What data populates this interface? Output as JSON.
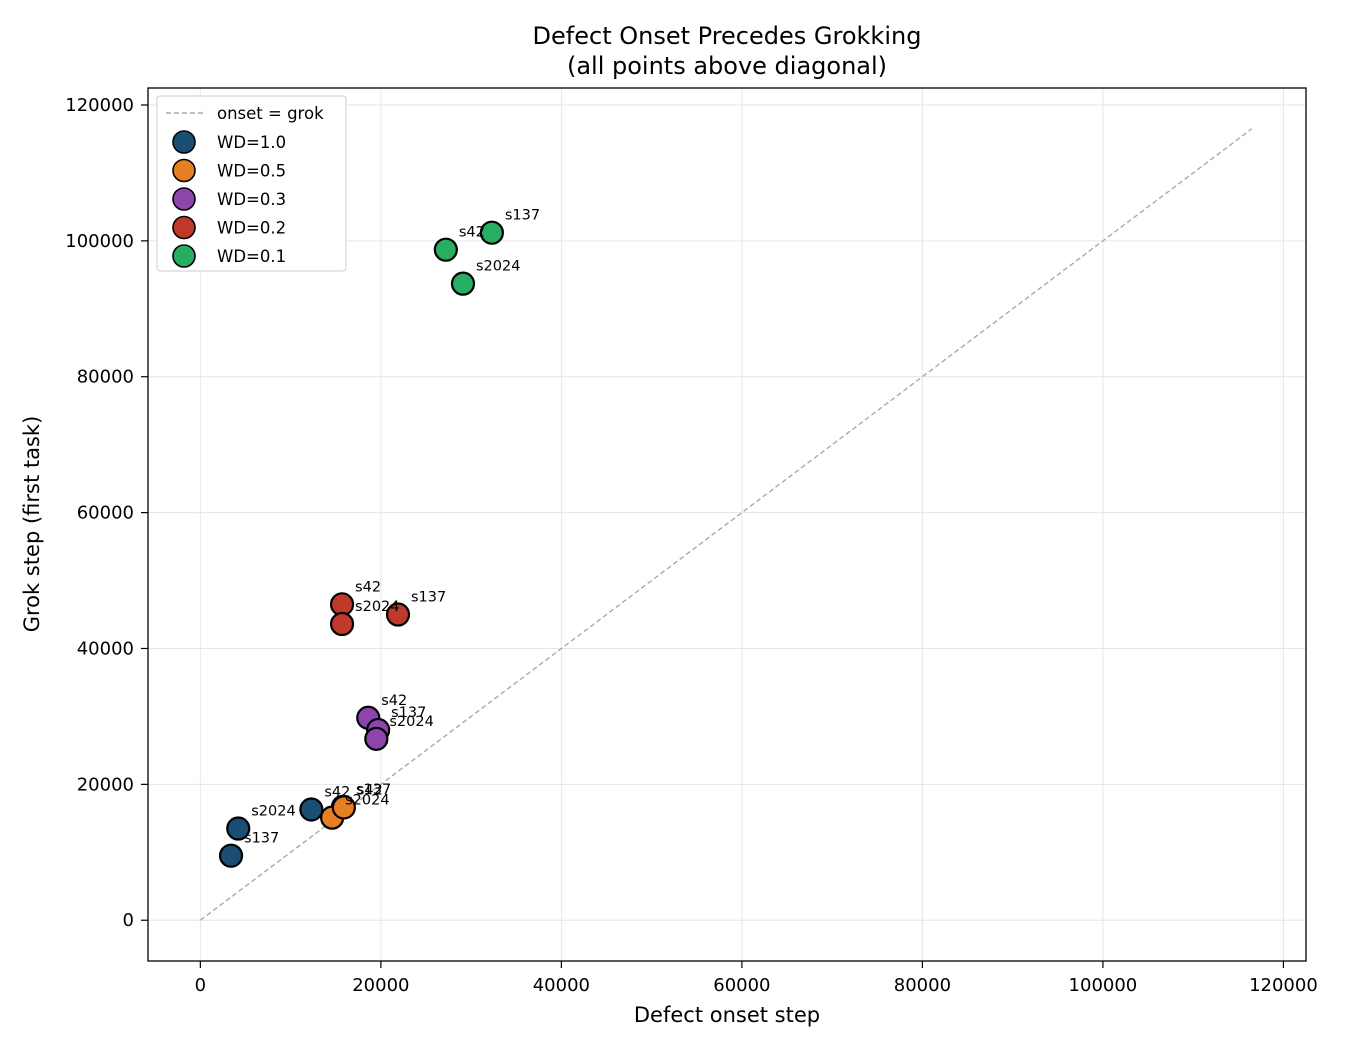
{
  "chart_data": {
    "type": "scatter",
    "title_lines": [
      "Defect Onset Precedes Grokking",
      "(all points above diagonal)"
    ],
    "xlabel": "Defect onset step",
    "ylabel": "Grok step (first task)",
    "xlim": [
      -5800,
      122500
    ],
    "ylim": [
      -6000,
      122500
    ],
    "xticks": [
      0,
      20000,
      40000,
      60000,
      80000,
      100000,
      120000
    ],
    "yticks": [
      0,
      20000,
      40000,
      60000,
      80000,
      100000,
      120000
    ],
    "xtick_labels": [
      "0",
      "20000",
      "40000",
      "60000",
      "80000",
      "100000",
      "120000"
    ],
    "ytick_labels": [
      "0",
      "20000",
      "40000",
      "60000",
      "80000",
      "100000",
      "120000"
    ],
    "grid": true,
    "legend_position": "top-left",
    "reference_line": {
      "label": "onset = grok",
      "from": [
        0,
        0
      ],
      "to": [
        116500,
        116500
      ],
      "color": "#aaaaaa"
    },
    "series": [
      {
        "name": "WD=1.0",
        "color": "#1a4e72",
        "points": [
          {
            "x": 12300,
            "y": 16300,
            "label": "s42"
          },
          {
            "x": 3400,
            "y": 9500,
            "label": "s137"
          },
          {
            "x": 4200,
            "y": 13500,
            "label": "s2024"
          }
        ]
      },
      {
        "name": "WD=0.5",
        "color": "#e67e22",
        "points": [
          {
            "x": 15800,
            "y": 16700,
            "label": "s137"
          },
          {
            "x": 14600,
            "y": 15100,
            "label": "s2024"
          },
          {
            "x": 15900,
            "y": 16600,
            "label": "s42"
          }
        ]
      },
      {
        "name": "WD=0.3",
        "color": "#8e44ad",
        "points": [
          {
            "x": 18600,
            "y": 29800,
            "label": "s42"
          },
          {
            "x": 19700,
            "y": 28000,
            "label": "s137"
          },
          {
            "x": 19500,
            "y": 26700,
            "label": "s2024"
          }
        ]
      },
      {
        "name": "WD=0.2",
        "color": "#c0392b",
        "points": [
          {
            "x": 15700,
            "y": 46500,
            "label": "s42"
          },
          {
            "x": 21900,
            "y": 45000,
            "label": "s137"
          },
          {
            "x": 15700,
            "y": 43600,
            "label": "s2024"
          }
        ]
      },
      {
        "name": "WD=0.1",
        "color": "#27ae60",
        "points": [
          {
            "x": 27200,
            "y": 98700,
            "label": "s42"
          },
          {
            "x": 32300,
            "y": 101200,
            "label": "s137"
          },
          {
            "x": 29100,
            "y": 93700,
            "label": "s2024"
          }
        ]
      }
    ]
  }
}
